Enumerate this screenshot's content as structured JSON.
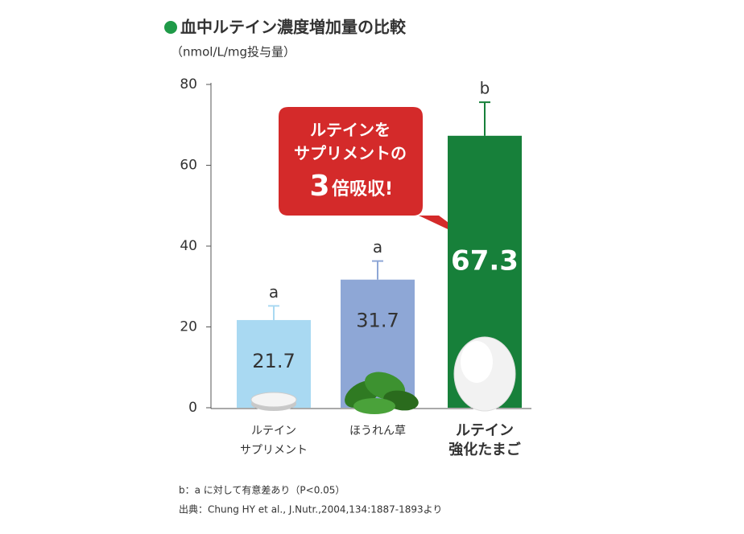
{
  "chart_data": {
    "type": "bar",
    "title": "血中ルテイン濃度増加量の比較",
    "subtitle": "（nmol/L/mg投与量）",
    "categories": [
      [
        "ルテイン",
        "サプリメント"
      ],
      [
        "ほうれん草"
      ],
      [
        "ルテイン",
        "強化たまご"
      ]
    ],
    "values": [
      21.7,
      31.7,
      67.3
    ],
    "errors": [
      3.5,
      4.6,
      8.3
    ],
    "significance": [
      "a",
      "a",
      "b"
    ],
    "colors": [
      "#a9d9f2",
      "#8ea7d6",
      "#17803a"
    ],
    "ylim": [
      0,
      80
    ],
    "yticks": [
      0,
      20,
      40,
      60,
      80
    ],
    "callout": {
      "lines": [
        "ルテインを",
        "サプリメントの"
      ],
      "number": "3",
      "text": "倍吸収!"
    },
    "footnotes": [
      "b：a に対して有意差あり（P<0.05）",
      "出典：Chung HY et al., J.Nutr.,2004,134:1887-1893より"
    ]
  }
}
